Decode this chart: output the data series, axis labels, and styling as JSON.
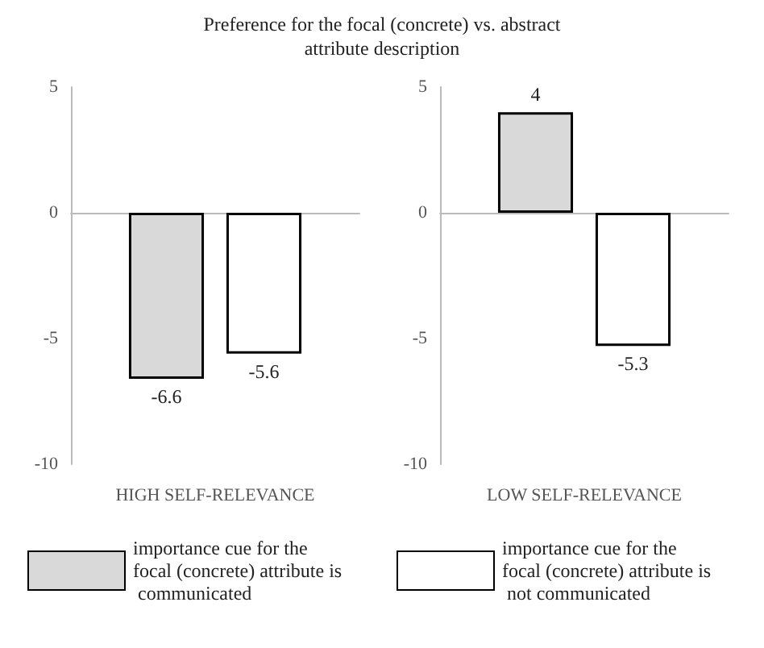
{
  "chart_data": [
    {
      "type": "bar",
      "title": "Preference for the focal (concrete) vs. abstract attribute description",
      "categories": [
        "HIGH SELF-RELEVANCE"
      ],
      "series": [
        {
          "name": "importance cue for the focal (concrete) attribute is communicated",
          "color": "#d9d9d9",
          "values": [
            -6.6
          ]
        },
        {
          "color": "#ffffff",
          "values": [
            -5.6
          ]
        }
      ],
      "ylim": [
        -10,
        5
      ],
      "yticks": [
        5,
        0,
        -5,
        -10
      ],
      "data_labels": true,
      "legend": "bottom"
    },
    {
      "type": "bar",
      "categories": [
        "LOW SELF-RELEVANCE"
      ],
      "series": [
        {
          "color": "#d9d9d9",
          "values": [
            4
          ]
        },
        {
          "name": "importance cue for the focal (concrete) attribute is not communicated",
          "color": "#ffffff",
          "values": [
            -5.3
          ]
        }
      ],
      "ylim": [
        -10,
        5
      ],
      "yticks": [
        5,
        0,
        -5,
        -10
      ],
      "data_labels": true,
      "legend": "bottom"
    }
  ]
}
